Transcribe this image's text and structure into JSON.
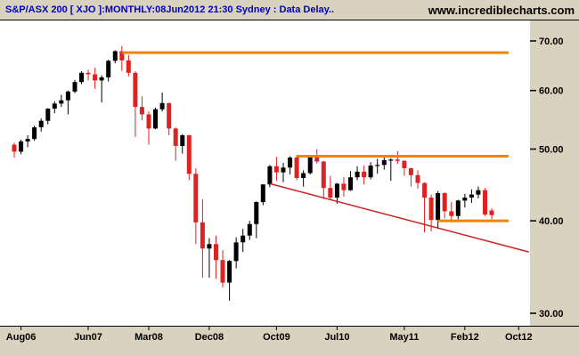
{
  "header": {
    "title": "S&P/ASX 200 [ XJO ]:MONTHLY:08Jun2012 21:30 Sydney : Data Delay..",
    "website": "www.incrediblecharts.com"
  },
  "colors": {
    "background": "#d9d2bf",
    "plot_bg": "#ffffff",
    "up_candle": "#000000",
    "down_candle": "#dd2222",
    "resistance_line": "#f08400",
    "trendline": "#cc2222",
    "title_color": "#0000c8",
    "axis_text": "#000000"
  },
  "chart_data": {
    "type": "candlestick",
    "symbol": "S&P/ASX 200",
    "code": "XJO",
    "interval": "MONTHLY",
    "as_of": "08Jun2012 21:30 Sydney",
    "y_axis": {
      "side": "right",
      "scale": "log",
      "range": [
        30,
        70
      ],
      "ticks": [
        70,
        60,
        50,
        40,
        30
      ],
      "tick_labels": [
        "70.00",
        "60.00",
        "50.00",
        "40.00",
        "30.00"
      ]
    },
    "x_axis": {
      "tick_labels": [
        "Aug06",
        "Jun07",
        "Mar08",
        "Dec08",
        "Oct09",
        "Jul10",
        "May11",
        "Feb12",
        "Oct12"
      ],
      "tick_months": [
        1,
        11,
        20,
        29,
        39,
        48,
        58,
        67,
        75
      ]
    },
    "candles": [
      {
        "t": "Jul06",
        "o": 50.7,
        "h": 51.0,
        "l": 48.7,
        "c": 49.6
      },
      {
        "t": "Aug06",
        "o": 49.6,
        "h": 51.5,
        "l": 49.2,
        "c": 51.2
      },
      {
        "t": "Sep06",
        "o": 51.2,
        "h": 52.2,
        "l": 50.3,
        "c": 51.6
      },
      {
        "t": "Oct06",
        "o": 51.6,
        "h": 53.8,
        "l": 51.3,
        "c": 53.5
      },
      {
        "t": "Nov06",
        "o": 53.5,
        "h": 55.0,
        "l": 52.8,
        "c": 54.6
      },
      {
        "t": "Dec06",
        "o": 54.6,
        "h": 56.8,
        "l": 54.0,
        "c": 56.7
      },
      {
        "t": "Jan07",
        "o": 56.7,
        "h": 58.0,
        "l": 55.9,
        "c": 57.6
      },
      {
        "t": "Feb07",
        "o": 57.6,
        "h": 59.2,
        "l": 57.0,
        "c": 58.2
      },
      {
        "t": "Mar07",
        "o": 58.2,
        "h": 60.0,
        "l": 55.7,
        "c": 59.8
      },
      {
        "t": "Apr07",
        "o": 59.8,
        "h": 62.0,
        "l": 59.5,
        "c": 61.6
      },
      {
        "t": "May07",
        "o": 61.6,
        "h": 63.7,
        "l": 61.2,
        "c": 63.4
      },
      {
        "t": "Jun07",
        "o": 63.4,
        "h": 64.0,
        "l": 61.9,
        "c": 63.1
      },
      {
        "t": "Jul07",
        "o": 63.1,
        "h": 64.4,
        "l": 60.3,
        "c": 61.9
      },
      {
        "t": "Aug07",
        "o": 61.9,
        "h": 62.9,
        "l": 57.8,
        "c": 62.5
      },
      {
        "t": "Sep07",
        "o": 62.5,
        "h": 66.0,
        "l": 61.7,
        "c": 65.8
      },
      {
        "t": "Oct07",
        "o": 65.8,
        "h": 68.0,
        "l": 65.3,
        "c": 67.8
      },
      {
        "t": "Nov07",
        "o": 67.8,
        "h": 68.9,
        "l": 63.8,
        "c": 65.9
      },
      {
        "t": "Dec07",
        "o": 65.9,
        "h": 67.0,
        "l": 62.7,
        "c": 63.4
      },
      {
        "t": "Jan08",
        "o": 63.4,
        "h": 63.7,
        "l": 51.9,
        "c": 57.0
      },
      {
        "t": "Feb08",
        "o": 57.0,
        "h": 58.9,
        "l": 54.7,
        "c": 55.7
      },
      {
        "t": "Mar08",
        "o": 55.7,
        "h": 56.2,
        "l": 50.7,
        "c": 53.3
      },
      {
        "t": "Apr08",
        "o": 53.3,
        "h": 56.9,
        "l": 53.2,
        "c": 56.6
      },
      {
        "t": "May08",
        "o": 56.6,
        "h": 59.6,
        "l": 56.2,
        "c": 57.7
      },
      {
        "t": "Jun08",
        "o": 57.7,
        "h": 57.8,
        "l": 52.2,
        "c": 53.3
      },
      {
        "t": "Jul08",
        "o": 53.3,
        "h": 53.5,
        "l": 48.2,
        "c": 50.5
      },
      {
        "t": "Aug08",
        "o": 50.5,
        "h": 52.4,
        "l": 49.3,
        "c": 52.2
      },
      {
        "t": "Sep08",
        "o": 52.2,
        "h": 52.3,
        "l": 45.4,
        "c": 46.3
      },
      {
        "t": "Oct08",
        "o": 46.3,
        "h": 47.1,
        "l": 37.2,
        "c": 39.8
      },
      {
        "t": "Nov08",
        "o": 39.8,
        "h": 42.8,
        "l": 33.5,
        "c": 36.7
      },
      {
        "t": "Dec08",
        "o": 36.7,
        "h": 37.9,
        "l": 33.5,
        "c": 37.2
      },
      {
        "t": "Jan09",
        "o": 37.2,
        "h": 38.2,
        "l": 33.4,
        "c": 35.4
      },
      {
        "t": "Feb09",
        "o": 35.4,
        "h": 36.5,
        "l": 32.5,
        "c": 33.0
      },
      {
        "t": "Mar09",
        "o": 33.0,
        "h": 35.4,
        "l": 31.2,
        "c": 35.3
      },
      {
        "t": "Apr09",
        "o": 35.3,
        "h": 38.0,
        "l": 34.5,
        "c": 37.4
      },
      {
        "t": "May09",
        "o": 37.4,
        "h": 39.0,
        "l": 36.3,
        "c": 38.2
      },
      {
        "t": "Jun09",
        "o": 38.2,
        "h": 40.0,
        "l": 37.7,
        "c": 39.6
      },
      {
        "t": "Jul09",
        "o": 39.6,
        "h": 42.5,
        "l": 37.9,
        "c": 42.4
      },
      {
        "t": "Aug09",
        "o": 42.4,
        "h": 44.8,
        "l": 42.0,
        "c": 44.8
      },
      {
        "t": "Sep09",
        "o": 44.8,
        "h": 47.6,
        "l": 44.4,
        "c": 47.4
      },
      {
        "t": "Oct09",
        "o": 47.4,
        "h": 48.8,
        "l": 45.3,
        "c": 46.5
      },
      {
        "t": "Nov09",
        "o": 46.5,
        "h": 47.9,
        "l": 45.1,
        "c": 47.2
      },
      {
        "t": "Dec09",
        "o": 47.2,
        "h": 48.9,
        "l": 46.2,
        "c": 48.7
      },
      {
        "t": "Jan10",
        "o": 48.7,
        "h": 49.0,
        "l": 45.4,
        "c": 45.7
      },
      {
        "t": "Feb10",
        "o": 45.7,
        "h": 46.8,
        "l": 44.5,
        "c": 46.4
      },
      {
        "t": "Mar10",
        "o": 46.4,
        "h": 49.0,
        "l": 46.2,
        "c": 48.9
      },
      {
        "t": "Apr10",
        "o": 48.9,
        "h": 50.0,
        "l": 47.8,
        "c": 48.1
      },
      {
        "t": "May10",
        "o": 48.1,
        "h": 48.2,
        "l": 42.8,
        "c": 44.3
      },
      {
        "t": "Jun10",
        "o": 44.3,
        "h": 46.0,
        "l": 42.7,
        "c": 43.0
      },
      {
        "t": "Jul10",
        "o": 43.0,
        "h": 45.0,
        "l": 42.2,
        "c": 44.9
      },
      {
        "t": "Aug10",
        "o": 44.9,
        "h": 45.8,
        "l": 43.1,
        "c": 44.0
      },
      {
        "t": "Sep10",
        "o": 44.0,
        "h": 46.7,
        "l": 43.9,
        "c": 45.8
      },
      {
        "t": "Oct10",
        "o": 45.8,
        "h": 47.4,
        "l": 45.4,
        "c": 46.6
      },
      {
        "t": "Nov10",
        "o": 46.6,
        "h": 47.5,
        "l": 44.8,
        "c": 45.8
      },
      {
        "t": "Dec10",
        "o": 45.8,
        "h": 48.0,
        "l": 45.5,
        "c": 47.5
      },
      {
        "t": "Jan11",
        "o": 47.5,
        "h": 48.5,
        "l": 46.3,
        "c": 47.6
      },
      {
        "t": "Feb11",
        "o": 47.6,
        "h": 49.0,
        "l": 46.9,
        "c": 48.3
      },
      {
        "t": "Mar11",
        "o": 48.3,
        "h": 48.6,
        "l": 45.3,
        "c": 48.4
      },
      {
        "t": "Apr11",
        "o": 48.4,
        "h": 49.7,
        "l": 47.7,
        "c": 48.2
      },
      {
        "t": "May11",
        "o": 48.2,
        "h": 48.3,
        "l": 46.0,
        "c": 47.1
      },
      {
        "t": "Jun11",
        "o": 47.1,
        "h": 47.2,
        "l": 44.5,
        "c": 46.1
      },
      {
        "t": "Jul11",
        "o": 46.1,
        "h": 46.8,
        "l": 44.2,
        "c": 45.0
      },
      {
        "t": "Aug11",
        "o": 45.0,
        "h": 45.1,
        "l": 38.6,
        "c": 43.0
      },
      {
        "t": "Sep11",
        "o": 43.0,
        "h": 43.4,
        "l": 38.7,
        "c": 40.1
      },
      {
        "t": "Oct11",
        "o": 40.1,
        "h": 43.9,
        "l": 39.0,
        "c": 43.6
      },
      {
        "t": "Nov11",
        "o": 43.6,
        "h": 43.7,
        "l": 40.3,
        "c": 41.2
      },
      {
        "t": "Dec11",
        "o": 41.2,
        "h": 42.4,
        "l": 39.8,
        "c": 40.6
      },
      {
        "t": "Jan12",
        "o": 40.6,
        "h": 42.7,
        "l": 40.2,
        "c": 42.6
      },
      {
        "t": "Feb12",
        "o": 42.6,
        "h": 43.5,
        "l": 41.7,
        "c": 43.0
      },
      {
        "t": "Mar12",
        "o": 43.0,
        "h": 44.1,
        "l": 42.3,
        "c": 43.4
      },
      {
        "t": "Apr12",
        "o": 43.4,
        "h": 44.5,
        "l": 42.9,
        "c": 44.0
      },
      {
        "t": "May12",
        "o": 44.0,
        "h": 44.3,
        "l": 40.6,
        "c": 40.8
      },
      {
        "t": "Jun12",
        "o": 41.3,
        "h": 41.6,
        "l": 40.2,
        "c": 40.7
      }
    ],
    "overlays": [
      {
        "kind": "trendline",
        "from_month": 38,
        "value_start": 44.9,
        "to_month": 76.5,
        "value_end": 36.3,
        "color_key": "trendline"
      },
      {
        "kind": "resistance",
        "value": 67.5,
        "from_month": 16,
        "to_month": 73.5,
        "color_key": "resistance_line"
      },
      {
        "kind": "resistance",
        "value": 48.9,
        "from_month": 42,
        "to_month": 73.5,
        "color_key": "resistance_line"
      },
      {
        "kind": "support",
        "value": 40.0,
        "from_month": 63,
        "to_month": 73.5,
        "color_key": "resistance_line"
      }
    ]
  }
}
